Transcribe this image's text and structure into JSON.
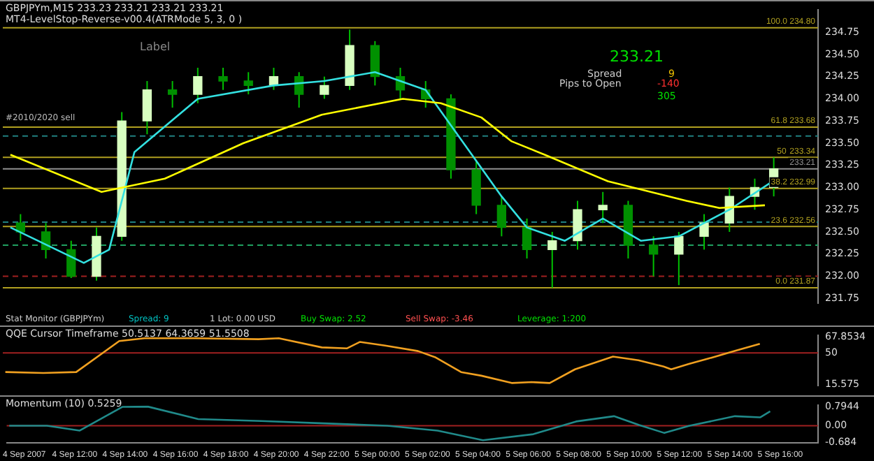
{
  "chart_data": [
    {
      "type": "candlestick",
      "title": "GBPJPYm,M15 233.23 233.21 233.21 233.21",
      "subtitle": "MT4-LevelStop-Reverse-v00.4(ATRMode 5, 3, 0 )",
      "x": [
        "2007-09-04T10:00",
        "2007-09-04T11:00",
        "2007-09-04T12:00",
        "2007-09-04T13:00",
        "2007-09-04T14:00",
        "2007-09-04T15:00",
        "2007-09-04T16:00",
        "2007-09-04T17:00",
        "2007-09-04T18:00",
        "2007-09-04T19:00",
        "2007-09-04T20:00",
        "2007-09-04T21:00",
        "2007-09-04T22:00",
        "2007-09-04T23:00",
        "2007-09-05T00:00",
        "2007-09-05T01:00",
        "2007-09-05T02:00",
        "2007-09-05T03:00",
        "2007-09-05T04:00",
        "2007-09-05T05:00",
        "2007-09-05T06:00",
        "2007-09-05T07:00",
        "2007-09-05T08:00",
        "2007-09-05T09:00",
        "2007-09-05T10:00",
        "2007-09-05T11:00",
        "2007-09-05T12:00",
        "2007-09-05T13:00",
        "2007-09-05T14:00",
        "2007-09-05T15:00",
        "2007-09-05T15:45"
      ],
      "ohlc": [
        [
          232.6,
          232.7,
          232.4,
          232.5
        ],
        [
          232.5,
          232.6,
          232.2,
          232.3
        ],
        [
          232.3,
          232.4,
          231.98,
          232.0
        ],
        [
          232.0,
          232.55,
          231.95,
          232.45
        ],
        [
          232.45,
          233.85,
          232.4,
          233.75
        ],
        [
          233.75,
          234.2,
          233.6,
          234.1
        ],
        [
          234.1,
          234.2,
          233.9,
          234.05
        ],
        [
          234.05,
          234.35,
          233.95,
          234.25
        ],
        [
          234.25,
          234.35,
          234.1,
          234.2
        ],
        [
          234.2,
          234.3,
          234.05,
          234.15
        ],
        [
          234.15,
          234.35,
          234.1,
          234.25
        ],
        [
          234.25,
          234.3,
          233.9,
          234.05
        ],
        [
          234.05,
          234.25,
          234.0,
          234.15
        ],
        [
          234.15,
          234.78,
          234.1,
          234.6
        ],
        [
          234.6,
          234.65,
          234.15,
          234.25
        ],
        [
          234.25,
          234.35,
          234.0,
          234.1
        ],
        [
          234.1,
          234.2,
          233.9,
          234.0
        ],
        [
          234.0,
          234.05,
          233.1,
          233.2
        ],
        [
          233.2,
          233.3,
          232.7,
          232.8
        ],
        [
          232.8,
          232.9,
          232.45,
          232.55
        ],
        [
          232.55,
          232.65,
          232.2,
          232.3
        ],
        [
          232.3,
          232.5,
          231.87,
          232.4
        ],
        [
          232.4,
          232.85,
          232.3,
          232.75
        ],
        [
          232.75,
          232.95,
          232.6,
          232.8
        ],
        [
          232.8,
          232.85,
          232.2,
          232.35
        ],
        [
          232.35,
          232.45,
          232.0,
          232.25
        ],
        [
          232.25,
          232.5,
          231.9,
          232.45
        ],
        [
          232.45,
          232.7,
          232.3,
          232.6
        ],
        [
          232.6,
          233.0,
          232.5,
          232.9
        ],
        [
          232.9,
          233.1,
          232.75,
          233.0
        ],
        [
          233.0,
          233.34,
          232.9,
          233.21
        ]
      ],
      "series": [
        {
          "type": "line",
          "color": "#ffff00",
          "x": [
            "2007-09-04T09:36",
            "2007-09-04T13:12",
            "2007-09-04T15:42",
            "2007-09-04T18:48",
            "2007-09-04T21:54",
            "2007-09-05T01:06",
            "2007-09-05T02:36",
            "2007-09-05T04:12",
            "2007-09-05T05:24",
            "2007-09-05T06:42",
            "2007-09-05T09:12",
            "2007-09-05T12:18",
            "2007-09-05T13:36",
            "2007-09-05T15:24"
          ],
          "values": [
            233.37,
            232.95,
            233.1,
            233.5,
            233.82,
            234.0,
            233.95,
            233.79,
            233.52,
            233.37,
            233.07,
            232.85,
            232.77,
            232.8
          ]
        },
        {
          "type": "line",
          "color": "#33e0e0",
          "x": [
            "2007-09-04T09:36",
            "2007-09-04T12:30",
            "2007-09-04T13:30",
            "2007-09-04T14:30",
            "2007-09-04T17:00",
            "2007-09-04T20:00",
            "2007-09-04T22:00",
            "2007-09-05T00:00",
            "2007-09-05T02:00",
            "2007-09-05T03:00",
            "2007-09-05T05:00",
            "2007-09-05T06:00",
            "2007-09-05T07:30",
            "2007-09-05T09:00",
            "2007-09-05T10:30",
            "2007-09-05T12:00",
            "2007-09-05T14:00",
            "2007-09-05T15:36"
          ],
          "values": [
            232.55,
            232.15,
            232.3,
            233.4,
            234.0,
            234.15,
            234.2,
            234.3,
            234.1,
            233.7,
            232.9,
            232.55,
            232.4,
            232.65,
            232.4,
            232.45,
            232.75,
            233.05
          ]
        }
      ],
      "xlim": [
        "2007-09-04T09:18",
        "2007-09-05T17:30"
      ],
      "ylim": [
        231.7,
        235.0
      ],
      "yticks": [
        231.75,
        {
          "value": 232,
          "label": "232.00"
        },
        232.25,
        {
          "value": 232.5,
          "label": "232.50"
        },
        232.75,
        {
          "value": 233,
          "label": "233.00"
        },
        233.25,
        {
          "value": 233.5,
          "label": "233.50"
        },
        233.75,
        {
          "value": 234,
          "label": "234.00"
        },
        234.25,
        {
          "value": 234.5,
          "label": "234.50"
        },
        234.75
      ],
      "tick_labels": "y",
      "marker": "none",
      "ref_lines": [
        {
          "axis": "y",
          "value": 234.8,
          "label": "100.0 234.80",
          "color": "#b0a020",
          "line_style": "solid"
        },
        {
          "axis": "y",
          "value": 233.68,
          "label": "61.8 233.68",
          "color": "#b0a020",
          "line_style": "solid"
        },
        {
          "axis": "y",
          "value": 233.34,
          "label": "233.34",
          "color": "#b0a020",
          "line_style": "solid"
        },
        {
          "axis": "y",
          "value": 232.99,
          "label": "38.2 232.99",
          "color": "#b0a020",
          "line_style": "solid"
        },
        {
          "axis": "y",
          "value": 232.56,
          "label": "23.6 232.56",
          "color": "#b0a020",
          "line_style": "solid"
        },
        {
          "axis": "y",
          "value": 231.87,
          "label": "0.0 231.87",
          "color": "#b0a020",
          "line_style": "solid"
        },
        {
          "axis": "y",
          "value": 233.21,
          "label": "233.21",
          "color": "#909090",
          "line_style": "solid"
        },
        {
          "axis": "y",
          "value": 233.58,
          "color": "#208080",
          "line_style": "dashed"
        },
        {
          "axis": "y",
          "value": 232.61,
          "color": "#208080",
          "line_style": "dashed"
        },
        {
          "axis": "y",
          "value": 232.35,
          "color": "#20a060",
          "line_style": "dashed"
        },
        {
          "axis": "y",
          "value": 232.0,
          "color": "#a02020",
          "line_style": "dashed"
        }
      ],
      "annotations": [
        "Label",
        "#2010/2020 sell",
        "233.21",
        "Spread",
        "9",
        "Pips to Open",
        "-140",
        "305",
        "Stat Monitor (GBPJPYm)",
        "Spread: 9",
        "1 Lot: 0.00 USD",
        "Buy Swap: 2.52",
        "Sell Swap: -3.46",
        "Leverage: 1:200",
        {
          "text": "50",
          "x": "2007-09-05T16:15",
          "y": 233.34
        }
      ]
    },
    {
      "type": "line",
      "title": "QQE Cursor Timeframe 50.5137 64.3659 51.5508",
      "x": [
        "2007-09-04T09:24",
        "2007-09-04T10:54",
        "2007-09-04T12:12",
        "2007-09-04T13:54",
        "2007-09-04T14:54",
        "2007-09-04T16:54",
        "2007-09-04T19:24",
        "2007-09-04T20:12",
        "2007-09-04T21:54",
        "2007-09-04T22:54",
        "2007-09-04T23:24",
        "2007-09-05T00:24",
        "2007-09-05T01:42",
        "2007-09-05T02:24",
        "2007-09-05T03:24",
        "2007-09-05T04:12",
        "2007-09-05T05:24",
        "2007-09-05T06:12",
        "2007-09-05T06:54",
        "2007-09-05T07:54",
        "2007-09-05T09:24",
        "2007-09-05T10:24",
        "2007-09-05T11:24",
        "2007-09-05T11:42",
        "2007-09-05T12:24",
        "2007-09-05T13:12",
        "2007-09-05T14:12",
        "2007-09-05T15:12"
      ],
      "series": [
        {
          "color": "#f0a020",
          "values": [
            29,
            28,
            29,
            63,
            66,
            66,
            65,
            66,
            56,
            55,
            62,
            58,
            52,
            45,
            29,
            25,
            17,
            18,
            17,
            32,
            46,
            42,
            35,
            32,
            38,
            44,
            52,
            60
          ]
        }
      ],
      "xlim": [
        "2007-09-04T09:18",
        "2007-09-05T17:30"
      ],
      "ylim": [
        14.5,
        69
      ],
      "yticks": [
        15.575,
        50,
        67.8534
      ],
      "tick_labels": "y",
      "marker": "none",
      "ref_lines": [
        {
          "axis": "y",
          "value": 50,
          "color": "#a02020",
          "line_style": "solid"
        }
      ]
    },
    {
      "type": "line",
      "title": "Momentum (10) 0.5259",
      "x": [
        "2007-09-04T09:24",
        "2007-09-04T10:54",
        "2007-09-04T12:12",
        "2007-09-04T13:54",
        "2007-09-04T14:54",
        "2007-09-04T16:54",
        "2007-09-04T19:24",
        "2007-09-04T21:54",
        "2007-09-05T00:24",
        "2007-09-05T02:24",
        "2007-09-05T04:12",
        "2007-09-05T06:12",
        "2007-09-05T07:54",
        "2007-09-05T09:24",
        "2007-09-05T10:24",
        "2007-09-05T11:24",
        "2007-09-05T12:24",
        "2007-09-05T14:12",
        "2007-09-05T15:12",
        "2007-09-05T15:36"
      ],
      "series": [
        {
          "color": "#208a8a",
          "values": [
            0,
            0,
            -0.2,
            0.79,
            0.8,
            0.28,
            0.2,
            0.1,
            0,
            -0.2,
            -0.6,
            -0.35,
            0.18,
            0.4,
            0.03,
            -0.3,
            0,
            0.4,
            0.35,
            0.6
          ]
        }
      ],
      "xlim": [
        "2007-09-04T09:18",
        "2007-09-05T17:30"
      ],
      "xticks": [
        {
          "value": "2007-09-04T10:00",
          "label": "4 Sep 2007"
        },
        {
          "value": "2007-09-04T12:00",
          "label": "4 Sep 12:00"
        },
        {
          "value": "2007-09-04T14:00",
          "label": "4 Sep 14:00"
        },
        {
          "value": "2007-09-04T16:00",
          "label": "4 Sep 16:00"
        },
        {
          "value": "2007-09-04T18:00",
          "label": "4 Sep 18:00"
        },
        {
          "value": "2007-09-04T20:00",
          "label": "4 Sep 20:00"
        },
        {
          "value": "2007-09-04T22:00",
          "label": "4 Sep 22:00"
        },
        {
          "value": "2007-09-05T00:00",
          "label": "5 Sep 00:00"
        },
        {
          "value": "2007-09-05T02:00",
          "label": "5 Sep 02:00"
        },
        {
          "value": "2007-09-05T04:00",
          "label": "5 Sep 04:00"
        },
        {
          "value": "2007-09-05T06:00",
          "label": "5 Sep 06:00"
        },
        {
          "value": "2007-09-05T08:00",
          "label": "5 Sep 08:00"
        },
        {
          "value": "2007-09-05T10:00",
          "label": "5 Sep 10:00"
        },
        {
          "value": "2007-09-05T12:00",
          "label": "5 Sep 12:00"
        },
        {
          "value": "2007-09-05T14:00",
          "label": "5 Sep 14:00"
        },
        {
          "value": "2007-09-05T16:00",
          "label": "5 Sep 16:00"
        }
      ],
      "ylim": [
        -0.7,
        0.85
      ],
      "yticks": [
        -0.684,
        {
          "value": 0,
          "label": "0.00"
        },
        0.7944
      ],
      "marker": "none",
      "ref_lines": [
        {
          "axis": "y",
          "value": 0,
          "color": "#a02020",
          "line_style": "solid"
        }
      ]
    }
  ]
}
